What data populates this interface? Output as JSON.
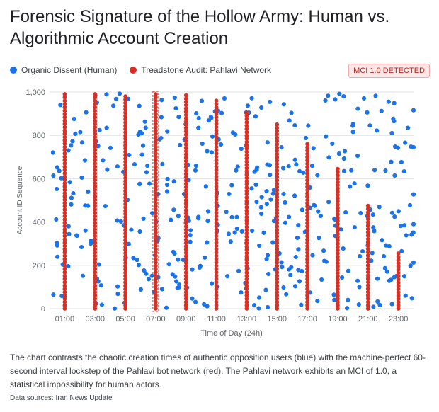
{
  "title": "Forensic Signature of the Hollow Army: Human vs. Algorithmic Account Creation",
  "badge": "MCI 1.0 DETECTED",
  "description": "The chart contrasts the chaotic creation times of authentic opposition users (blue) with the machine-perfect 60-second interval lockstep of the Pahlavi bot network (red). The Pahlavi network exhibits an MCI of 1.0, a statistical impossibility for human actors.",
  "source": {
    "label": "Data sources:",
    "link_text": "Iran News Update"
  },
  "colors": {
    "human": "#1a73e8",
    "bot": "#d93025",
    "grid": "#e0e0e0",
    "axis_text": "#5f6368"
  },
  "chart_data": {
    "type": "scatter",
    "xlabel": "Time of Day (24h)",
    "ylabel": "Account ID Sequence",
    "xlim": [
      0,
      24
    ],
    "ylim": [
      0,
      1000
    ],
    "x_ticks": [
      1,
      3,
      5,
      7,
      9,
      11,
      13,
      15,
      17,
      19,
      21,
      23
    ],
    "x_tick_labels": [
      "01:00",
      "03:00",
      "05:00",
      "07:00",
      "09:00",
      "11:00",
      "13:00",
      "15:00",
      "17:00",
      "19:00",
      "21:00",
      "23:00"
    ],
    "y_ticks": [
      0,
      200,
      400,
      600,
      800,
      1000
    ],
    "y_tick_labels": [
      "0",
      "200",
      "400",
      "600",
      "800",
      "1,000"
    ],
    "grid": true,
    "series": [
      {
        "name": "Organic Dissent (Human)",
        "pattern": "random scatter",
        "point_count": 420,
        "x_range": [
          0,
          24
        ],
        "y_range": [
          0,
          1000
        ]
      },
      {
        "name": "Treadstone Audit: Pahlavi Network",
        "pattern": "vertical columns, uniform interval",
        "columns": [
          {
            "x": 1,
            "y_min": 0,
            "y_max": 990
          },
          {
            "x": 3,
            "y_min": 0,
            "y_max": 990
          },
          {
            "x": 5,
            "y_min": 0,
            "y_max": 980
          },
          {
            "x": 7,
            "y_min": 0,
            "y_max": 990
          },
          {
            "x": 9,
            "y_min": 0,
            "y_max": 985
          },
          {
            "x": 11,
            "y_min": 0,
            "y_max": 960
          },
          {
            "x": 13,
            "y_min": 0,
            "y_max": 905
          },
          {
            "x": 15,
            "y_min": 0,
            "y_max": 850
          },
          {
            "x": 17,
            "y_min": 0,
            "y_max": 760
          },
          {
            "x": 19,
            "y_min": 0,
            "y_max": 645
          },
          {
            "x": 21,
            "y_min": 0,
            "y_max": 475
          },
          {
            "x": 23,
            "y_min": 0,
            "y_max": 255
          }
        ],
        "highlighted_column": 7
      }
    ]
  }
}
